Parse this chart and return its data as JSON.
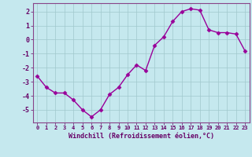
{
  "xlabel": "Windchill (Refroidissement éolien,°C)",
  "x_values": [
    0,
    1,
    2,
    3,
    4,
    5,
    6,
    7,
    8,
    9,
    10,
    11,
    12,
    13,
    14,
    15,
    16,
    17,
    18,
    19,
    20,
    21,
    22,
    23
  ],
  "y_values": [
    -2.6,
    -3.4,
    -3.8,
    -3.8,
    -4.3,
    -5.0,
    -5.5,
    -5.0,
    -3.9,
    -3.4,
    -2.5,
    -1.8,
    -2.2,
    -0.4,
    0.2,
    1.3,
    2.0,
    2.2,
    2.1,
    0.7,
    0.5,
    0.5,
    0.4,
    -0.8
  ],
  "ylim": [
    -5.9,
    2.6
  ],
  "yticks": [
    -5,
    -4,
    -3,
    -2,
    -1,
    0,
    1,
    2
  ],
  "xlim": [
    -0.5,
    23.5
  ],
  "line_color": "#990099",
  "marker_color": "#990099",
  "bg_color": "#c5e8ee",
  "grid_color": "#a0c8cc",
  "spine_color": "#884488",
  "label_color": "#660066",
  "tick_color": "#660066",
  "xlabel_fontsize": 6.0,
  "ytick_fontsize": 6.0,
  "xtick_fontsize": 5.0,
  "linewidth": 1.0,
  "markersize": 2.5
}
